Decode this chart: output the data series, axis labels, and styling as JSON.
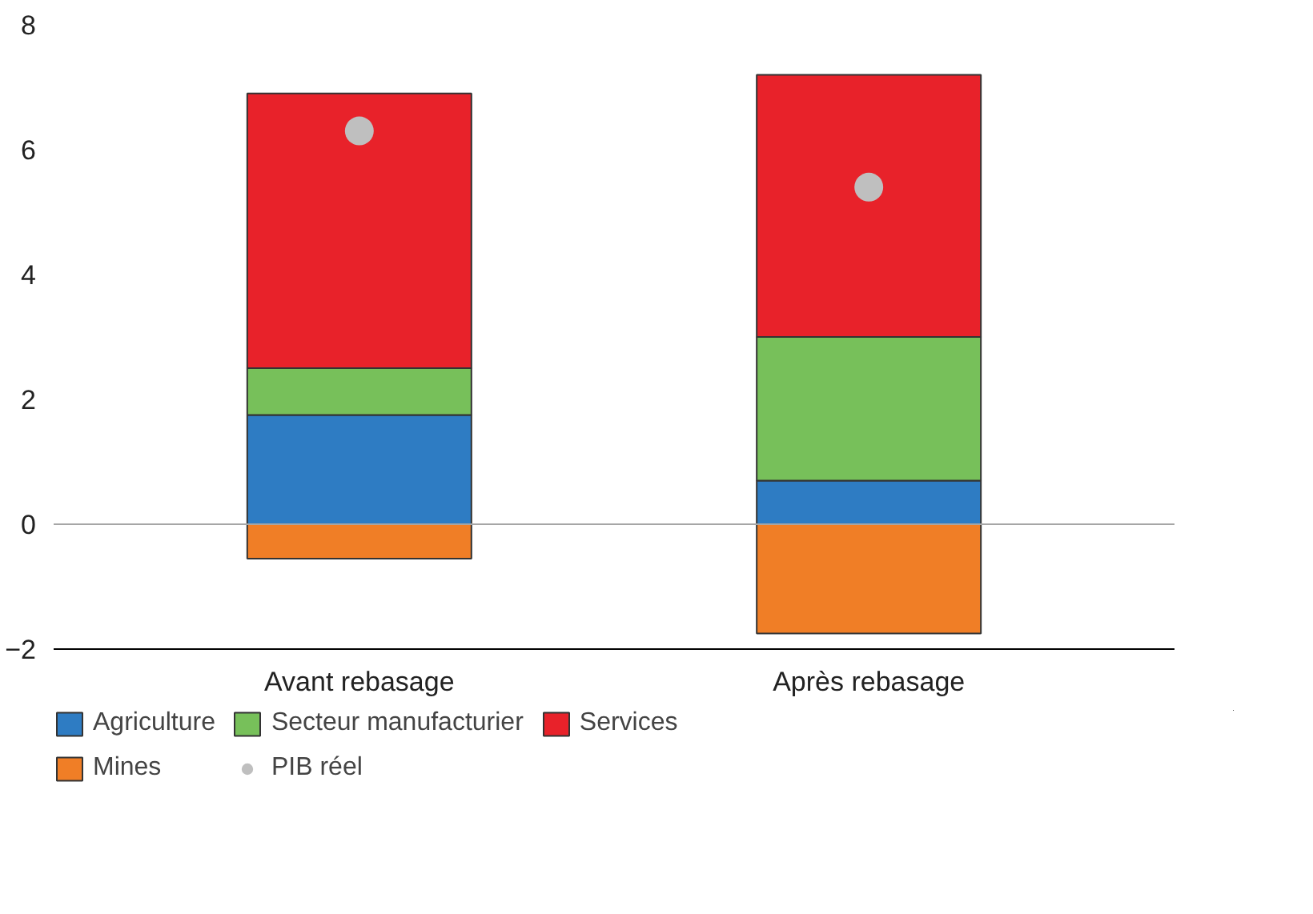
{
  "chart_data": {
    "type": "bar",
    "stacked": true,
    "categories": [
      "Avant rebasage",
      "Après rebasage"
    ],
    "ylim": [
      -2,
      8
    ],
    "yticks": [
      -2,
      0,
      2,
      4,
      6,
      8
    ],
    "grid": false,
    "legend": "bottom",
    "ref_lines": [
      {
        "axis": "y",
        "value": 0,
        "color": "#a6a6a6"
      }
    ],
    "series": [
      {
        "name": "Agriculture",
        "color": "#2e7cc3",
        "values": [
          1.75,
          0.7
        ]
      },
      {
        "name": "Secteur manufacturier",
        "color": "#77c05a",
        "values": [
          0.75,
          2.3
        ]
      },
      {
        "name": "Services",
        "color": "#e8222a",
        "values": [
          4.4,
          4.2
        ]
      },
      {
        "name": "Mines",
        "color": "#f07e26",
        "values": [
          -0.55,
          -1.75
        ]
      },
      {
        "name": "PIB réel",
        "type": "scatter",
        "marker": "circle",
        "color": "#bfbfbf",
        "x": [
          "Avant rebasage",
          "Après rebasage"
        ],
        "values": [
          6.3,
          5.4
        ]
      }
    ]
  }
}
